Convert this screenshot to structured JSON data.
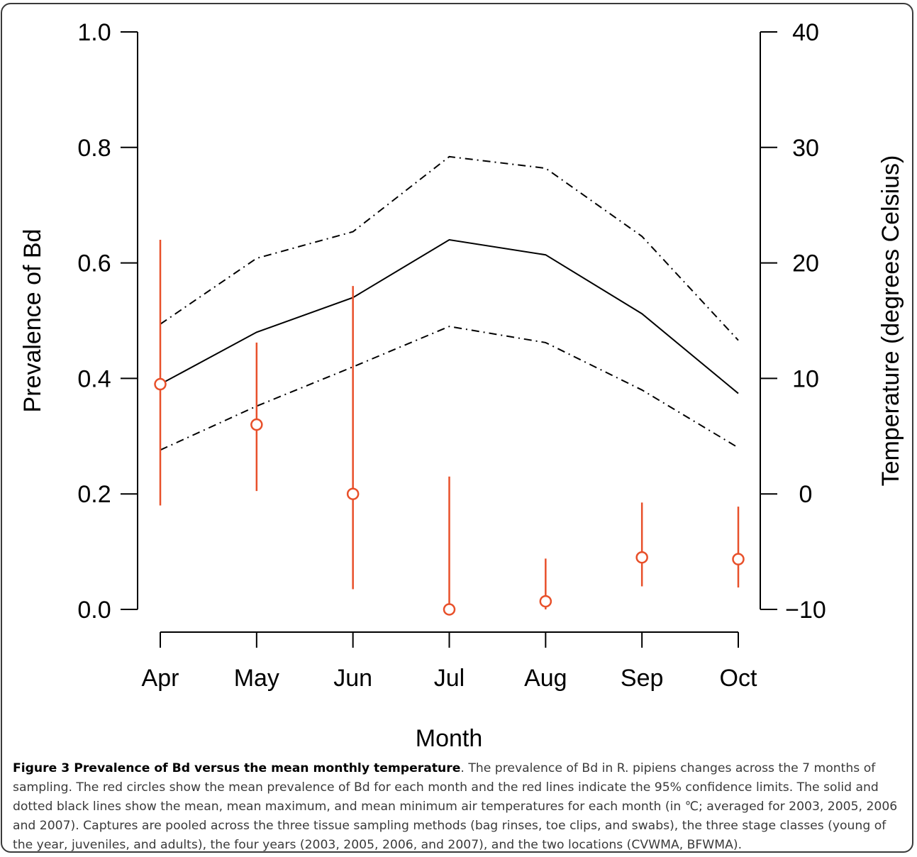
{
  "chart_data": {
    "type": "line",
    "categories": [
      "Apr",
      "May",
      "Jun",
      "Jul",
      "Aug",
      "Sep",
      "Oct"
    ],
    "xlabel": "Month",
    "ylabel_left": "Prevalence of Bd",
    "ylabel_right": "Temperature (degrees Celsius)",
    "ylim_left": [
      0,
      1
    ],
    "ylim_right": [
      -10,
      40
    ],
    "yticks_left": [
      "0.0",
      "0.2",
      "0.4",
      "0.6",
      "0.8",
      "1.0"
    ],
    "yticks_right": [
      "−10",
      "0",
      "10",
      "20",
      "30",
      "40"
    ],
    "colors": {
      "prevalence": "#e8502a",
      "temperature": "#000000"
    },
    "grid": false,
    "prevalence": {
      "mean": [
        0.39,
        0.32,
        0.2,
        0.0,
        0.014,
        0.09,
        0.087
      ],
      "ci_lower": [
        0.18,
        0.205,
        0.035,
        0.0,
        0.0,
        0.04,
        0.038
      ],
      "ci_upper": [
        0.64,
        0.462,
        0.56,
        0.23,
        0.088,
        0.185,
        0.178
      ]
    },
    "temperature_series": [
      {
        "style": "solid",
        "values": [
          9.5,
          14.0,
          17.0,
          22.0,
          20.7,
          15.6,
          8.7
        ]
      },
      {
        "style": "dash-dot",
        "values": [
          14.7,
          20.4,
          22.7,
          29.2,
          28.2,
          22.3,
          13.3
        ]
      },
      {
        "style": "dash-dot",
        "values": [
          3.8,
          7.6,
          11.0,
          14.5,
          13.1,
          9.0,
          4.0
        ]
      }
    ]
  },
  "caption": {
    "title": "Figure 3 Prevalence of Bd versus the mean monthly temperature",
    "text": ". The prevalence of Bd in R. pipiens changes across the 7 months of sampling. The red circles show the mean prevalence of Bd for each month and the red lines indicate the 95% confidence limits. The solid and dotted black lines show the mean, mean maximum, and mean minimum air temperatures for each month (in ℃; averaged for 2003, 2005, 2006 and 2007). Captures are pooled across the three tissue sampling methods (bag rinses, toe clips, and swabs), the three stage classes (young of the year, juveniles, and adults), the four years (2003, 2005, 2006, and 2007), and the two locations (CVWMA, BFWMA)."
  }
}
